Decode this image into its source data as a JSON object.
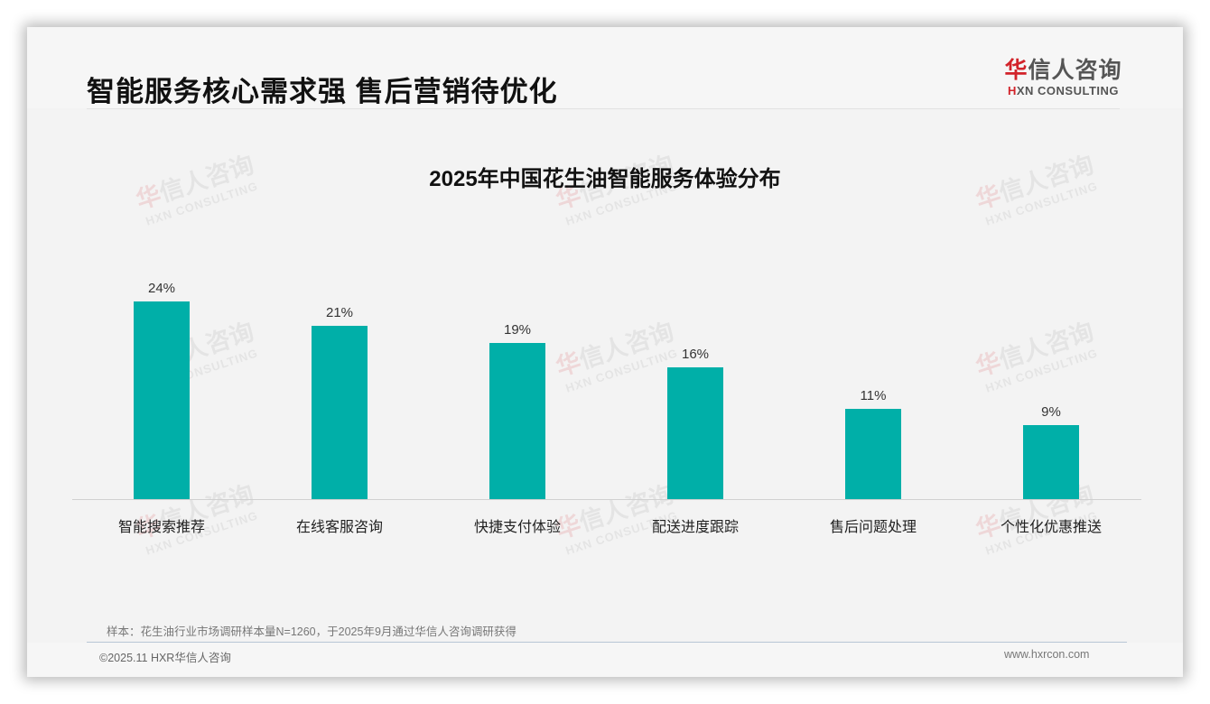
{
  "page": {
    "title": "智能服务核心需求强 售后营销待优化",
    "logo": {
      "cn_red": "华",
      "cn_rest": "信人咨询",
      "en_red": "H",
      "en_rest": "XN CONSULTING"
    },
    "watermark": {
      "cn_red": "华",
      "cn_rest": "信人咨询",
      "en": "HXN CONSULTING"
    },
    "note": "样本：花生油行业市场调研样本量N=1260，于2025年9月通过华信人咨询调研获得",
    "copyright": "©2025.11 HXR华信人咨询",
    "website": "www.hxrcon.com",
    "colors": {
      "bar": "#00afa8",
      "logo_red": "#d2232a"
    }
  },
  "chart_data": {
    "type": "bar",
    "title": "2025年中国花生油智能服务体验分布",
    "categories": [
      "智能搜索推荐",
      "在线客服咨询",
      "快捷支付体验",
      "配送进度跟踪",
      "售后问题处理",
      "个性化优惠推送"
    ],
    "values": [
      24,
      21,
      19,
      16,
      11,
      9
    ],
    "value_labels": [
      "24%",
      "21%",
      "19%",
      "16%",
      "11%",
      "9%"
    ],
    "unit": "%",
    "xlabel": "",
    "ylabel": "",
    "ylim": [
      0,
      24
    ],
    "grid": false,
    "legend": null
  }
}
